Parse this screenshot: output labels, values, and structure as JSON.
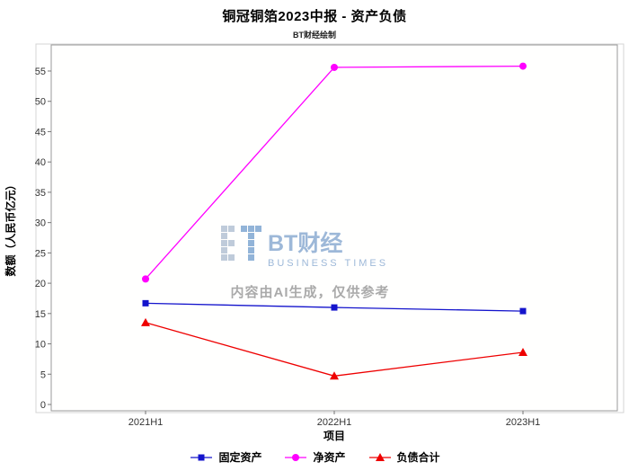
{
  "header": {
    "title": "铜冠铜箔2023中报 - 资产负债",
    "subtitle": "BT财经绘制"
  },
  "watermark": {
    "brand": "BT财经",
    "brand_sub": "BUSINESS TIMES",
    "notice": "内容由AI生成，仅供参考"
  },
  "chart_data": {
    "type": "line",
    "title": "铜冠铜箔2023中报 - 资产负债",
    "xlabel": "项目",
    "ylabel": "数额（人民币亿元）",
    "categories": [
      "2021H1",
      "2022H1",
      "2023H1"
    ],
    "series": [
      {
        "name": "固定资产",
        "color": "#1414cc",
        "marker": "square",
        "values": [
          16.7,
          16.0,
          15.4
        ]
      },
      {
        "name": "净资产",
        "color": "#ff00ff",
        "marker": "circle",
        "values": [
          20.7,
          55.6,
          55.8
        ]
      },
      {
        "name": "负债合计",
        "color": "#ee0000",
        "marker": "triangle",
        "values": [
          13.5,
          4.7,
          8.6
        ]
      }
    ],
    "ylim": [
      0,
      59.5
    ],
    "yticks": [
      0,
      5,
      10,
      15,
      20,
      25,
      30,
      35,
      40,
      45,
      50,
      55
    ],
    "grid": false,
    "legend_position": "bottom"
  }
}
